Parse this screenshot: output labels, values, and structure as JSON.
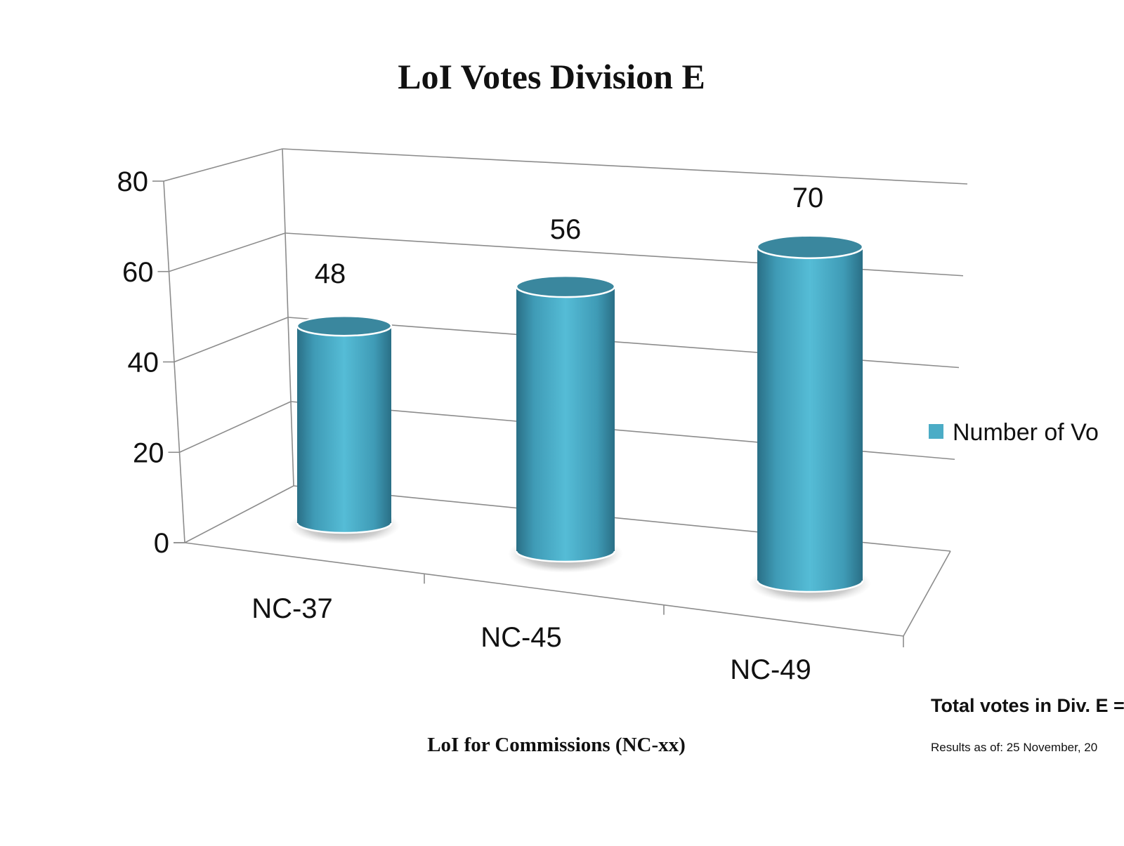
{
  "chart_data": {
    "type": "bar",
    "title": "LoI Votes Division E",
    "xlabel": "LoI for Commissions (NC-xx)",
    "ylabel": "",
    "categories": [
      "NC-37",
      "NC-45",
      "NC-49"
    ],
    "series": [
      {
        "name": "Number of Vo",
        "values": [
          48,
          56,
          70
        ],
        "color": "#4bacc6"
      }
    ],
    "ylim": [
      0,
      80
    ],
    "yticks": [
      "0",
      "20",
      "40",
      "60",
      "80"
    ],
    "data_labels": [
      "48",
      "56",
      "70"
    ],
    "grid": true,
    "legend_position": "right",
    "style": "3d-cylinder"
  },
  "notes": {
    "total": "Total votes in Div. E =",
    "results_date": "Results as of: 25 November, 20"
  }
}
